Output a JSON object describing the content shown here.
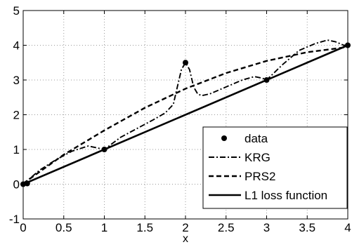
{
  "chart_data": {
    "type": "line",
    "title": "",
    "xlabel": "x",
    "ylabel": "",
    "xlim": [
      0,
      4
    ],
    "ylim": [
      -1,
      5
    ],
    "xticks": [
      0,
      0.5,
      1,
      1.5,
      2,
      2.5,
      3,
      3.5,
      4
    ],
    "xtick_labels": [
      "0",
      "0.5",
      "1",
      "1.5",
      "2",
      "2.5",
      "3",
      "3.5",
      "4"
    ],
    "yticks": [
      -1,
      0,
      1,
      2,
      3,
      4,
      5
    ],
    "ytick_labels": [
      "-1",
      "0",
      "1",
      "2",
      "3",
      "4",
      "5"
    ],
    "grid": true,
    "legend_position": "bottom-right",
    "series": [
      {
        "name": "data",
        "style": "markers",
        "color": "#000000",
        "x": [
          0,
          0.05,
          1,
          2,
          3,
          4
        ],
        "y": [
          0,
          0.02,
          1,
          3.5,
          3,
          4
        ]
      },
      {
        "name": "KRG",
        "style": "dash-dot",
        "color": "#000000",
        "x": [
          0,
          0.1,
          0.2,
          0.4,
          0.6,
          0.8,
          0.9,
          1.0,
          1.2,
          1.4,
          1.6,
          1.75,
          1.85,
          1.9,
          1.95,
          2.0,
          2.05,
          2.1,
          2.15,
          2.2,
          2.3,
          2.5,
          2.7,
          2.85,
          2.95,
          3.0,
          3.2,
          3.4,
          3.6,
          3.75,
          3.85,
          3.95,
          4.0
        ],
        "y": [
          0,
          0.2,
          0.4,
          0.7,
          0.95,
          1.1,
          1.05,
          1.0,
          1.35,
          1.6,
          1.85,
          2.05,
          2.3,
          2.8,
          3.3,
          3.5,
          3.3,
          2.8,
          2.6,
          2.55,
          2.6,
          2.8,
          3.0,
          3.1,
          3.05,
          3.0,
          3.45,
          3.85,
          4.05,
          4.15,
          4.1,
          4.0,
          4.0
        ]
      },
      {
        "name": "PRS2",
        "style": "dashed",
        "color": "#000000",
        "x": [
          0,
          0.5,
          1,
          1.5,
          2,
          2.5,
          3,
          3.5,
          4
        ],
        "y": [
          0.02,
          0.85,
          1.55,
          2.2,
          2.75,
          3.2,
          3.55,
          3.8,
          3.95
        ]
      },
      {
        "name": "L1 loss function",
        "style": "solid",
        "color": "#000000",
        "x": [
          0,
          4
        ],
        "y": [
          0,
          4
        ]
      }
    ]
  }
}
